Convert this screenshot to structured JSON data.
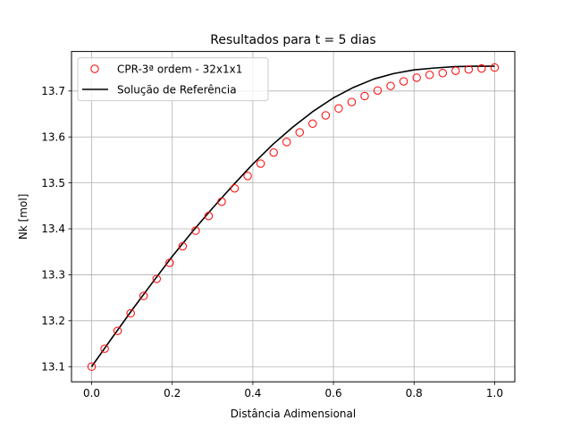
{
  "chart_data": {
    "type": "line",
    "title": "Resultados para t = 5 dias",
    "xlabel": "Distância Adimensional",
    "ylabel": "Nk [mol]",
    "xlim": [
      -0.05,
      1.05
    ],
    "ylim": [
      13.067,
      13.786
    ],
    "xticks": [
      0.0,
      0.2,
      0.4,
      0.6,
      0.8,
      1.0
    ],
    "xtick_labels": [
      "0.0",
      "0.2",
      "0.4",
      "0.6",
      "0.8",
      "1.0"
    ],
    "yticks": [
      13.1,
      13.2,
      13.3,
      13.4,
      13.5,
      13.6,
      13.7
    ],
    "ytick_labels": [
      "13.1",
      "13.2",
      "13.3",
      "13.4",
      "13.5",
      "13.6",
      "13.7"
    ],
    "grid": true,
    "legend_position": "upper-left",
    "series": [
      {
        "name": "CPR-3ª ordem - 32x1x1",
        "style": "markers-open-circle",
        "color": "#ff0000",
        "x": [
          0.0,
          0.0323,
          0.0645,
          0.0968,
          0.129,
          0.1613,
          0.1935,
          0.2258,
          0.2581,
          0.2903,
          0.3226,
          0.3548,
          0.3871,
          0.4194,
          0.4516,
          0.4839,
          0.5161,
          0.5484,
          0.5806,
          0.6129,
          0.6452,
          0.6774,
          0.7097,
          0.7419,
          0.7742,
          0.8065,
          0.8387,
          0.871,
          0.9032,
          0.9355,
          0.9677,
          1.0
        ],
        "y": [
          13.1,
          13.139,
          13.178,
          13.216,
          13.254,
          13.291,
          13.326,
          13.362,
          13.396,
          13.428,
          13.459,
          13.488,
          13.515,
          13.542,
          13.566,
          13.589,
          13.61,
          13.629,
          13.647,
          13.662,
          13.676,
          13.689,
          13.701,
          13.711,
          13.721,
          13.729,
          13.735,
          13.739,
          13.744,
          13.747,
          13.749,
          13.751
        ]
      },
      {
        "name": "Solução de Referência",
        "style": "line",
        "color": "#000000",
        "x": [
          0.0,
          0.05,
          0.1,
          0.15,
          0.2,
          0.25,
          0.3,
          0.35,
          0.4,
          0.45,
          0.5,
          0.55,
          0.6,
          0.65,
          0.7,
          0.75,
          0.8,
          0.85,
          0.9,
          0.95,
          1.0
        ],
        "y": [
          13.1,
          13.162,
          13.223,
          13.282,
          13.34,
          13.394,
          13.445,
          13.494,
          13.541,
          13.584,
          13.622,
          13.656,
          13.685,
          13.708,
          13.726,
          13.738,
          13.746,
          13.75,
          13.753,
          13.754,
          13.754
        ]
      }
    ]
  }
}
